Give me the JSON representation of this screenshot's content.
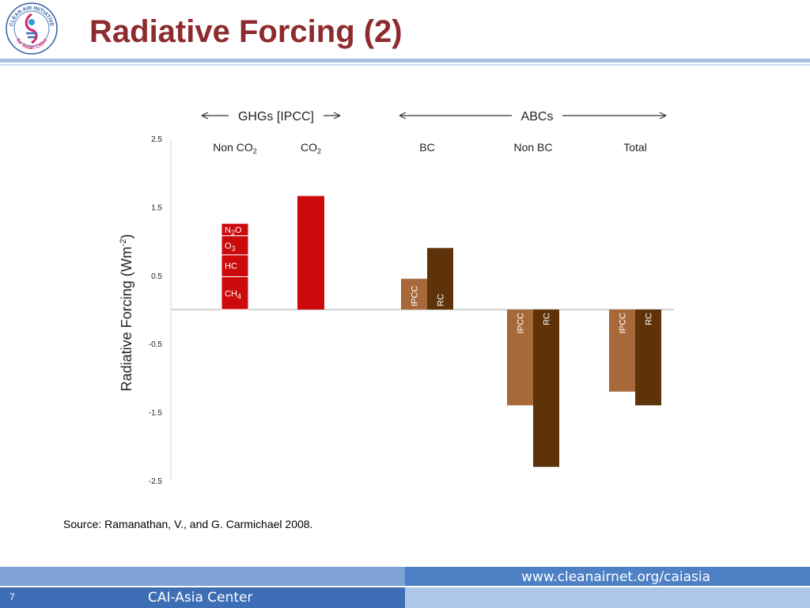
{
  "slide": {
    "title": "Radiative Forcing (2)",
    "logo": {
      "icon": "clean-air-initiative-logo",
      "text_top": "CLEAN AIR INITIATIVE",
      "text_bottom": "for Asian Cities"
    },
    "source": "Source: Ramanathan, V., and G. Carmichael 2008.",
    "footer": {
      "url": "www.cleanairnet.org/caiasia",
      "page_number": "7",
      "organization": "CAI-Asia Center"
    },
    "colors": {
      "title": "#8e2b2f",
      "ghg_red": "#cc0a0c",
      "ipcc_brown": "#a8693a",
      "rc_brown": "#5e3309"
    }
  },
  "chart_data": {
    "type": "bar",
    "ylabel": "Radiative Forcing (Wm-2)",
    "ylim": [
      -2.5,
      2.5
    ],
    "yticks": [
      "2.5",
      "1.5",
      "0.5",
      "-0.5",
      "-1.5",
      "-2.5"
    ],
    "ytick_values": [
      2.5,
      1.5,
      0.5,
      -0.5,
      -1.5,
      -2.5
    ],
    "group_headers": [
      {
        "label": "GHGs [IPCC]",
        "key": "ghg"
      },
      {
        "label": "ABCs",
        "key": "abc"
      }
    ],
    "categories": [
      "Non CO2",
      "CO2",
      "BC",
      "Non BC",
      "Total"
    ],
    "category_labels": [
      {
        "main": "Non CO",
        "sub": "2"
      },
      {
        "main": "CO",
        "sub": "2"
      },
      {
        "main": "BC",
        "sub": ""
      },
      {
        "main": "Non BC",
        "sub": ""
      },
      {
        "main": "Total",
        "sub": ""
      }
    ],
    "stacked": [
      {
        "category": "Non CO2",
        "segments": [
          {
            "label": "CH4",
            "main": "CH",
            "sub": "4",
            "value": 0.48
          },
          {
            "label": "HC",
            "main": "HC",
            "sub": "",
            "value": 0.32
          },
          {
            "label": "O3",
            "main": "O",
            "sub": "3",
            "value": 0.28
          },
          {
            "label": "N2O",
            "main": "N",
            "sub": "2",
            "tail": "O",
            "value": 0.18
          }
        ]
      }
    ],
    "single_bars": [
      {
        "category": "CO2",
        "value": 1.66
      }
    ],
    "series": [
      {
        "name": "IPCC",
        "values": [
          null,
          null,
          0.45,
          -1.4,
          -1.2
        ]
      },
      {
        "name": "RC",
        "values": [
          null,
          null,
          0.9,
          -2.3,
          -1.4
        ]
      }
    ]
  }
}
